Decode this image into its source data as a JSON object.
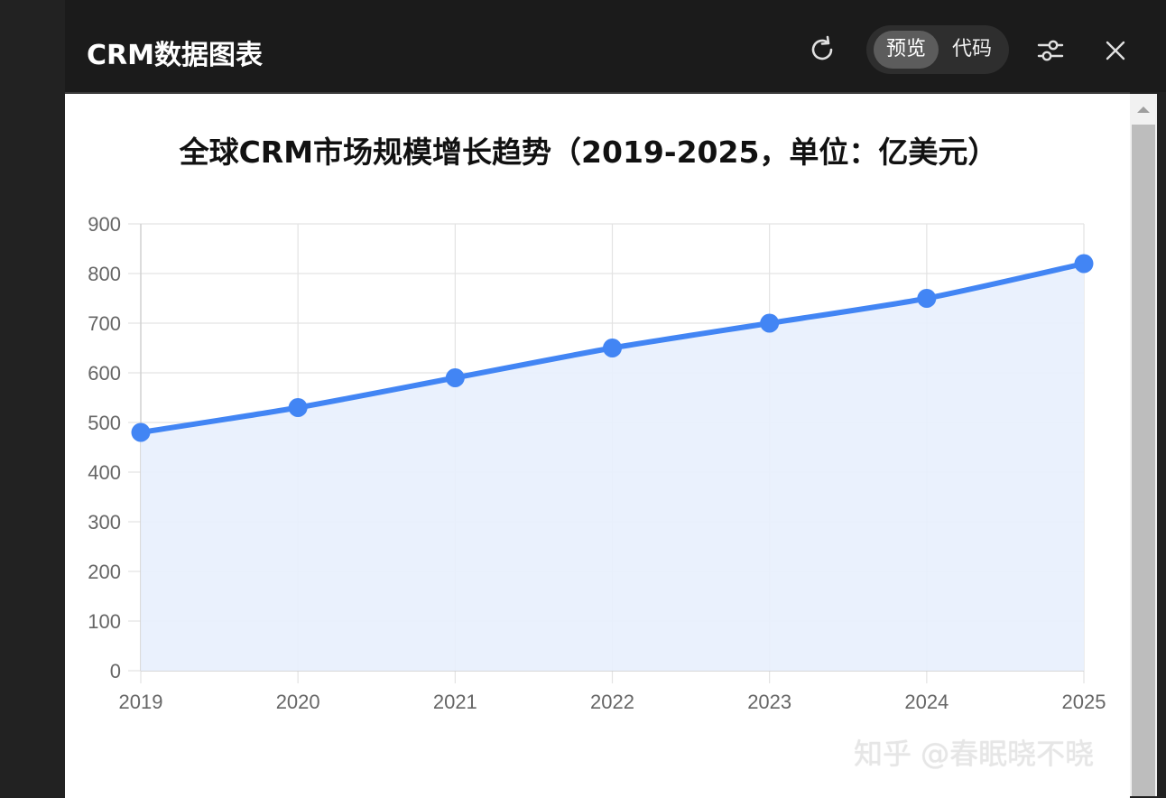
{
  "header": {
    "title": "CRM数据图表",
    "tabs": [
      {
        "label": "预览",
        "active": true
      },
      {
        "label": "代码",
        "active": false
      }
    ]
  },
  "icons": [
    "refresh-icon",
    "settings-sliders-icon",
    "close-icon",
    "scroll-up-arrow-icon"
  ],
  "watermark": "知乎 @春眠晓不晓",
  "colors": {
    "line": "#4285f4",
    "area_fill": "#e8f0fd",
    "header_bg": "#1b1b1b",
    "grid": "#e3e3e3"
  },
  "chart_data": {
    "type": "line",
    "title": "全球CRM市场规模增长趋势（2019-2025，单位：亿美元）",
    "xlabel": "",
    "ylabel": "",
    "categories": [
      "2019",
      "2020",
      "2021",
      "2022",
      "2023",
      "2024",
      "2025"
    ],
    "series": [
      {
        "values": [
          480,
          530,
          590,
          650,
          700,
          750,
          820
        ]
      }
    ],
    "ylim": [
      0,
      900
    ],
    "yticks": [
      0,
      100,
      200,
      300,
      400,
      500,
      600,
      700,
      800,
      900
    ],
    "fill_area": true,
    "grid": true,
    "legend": "none"
  }
}
